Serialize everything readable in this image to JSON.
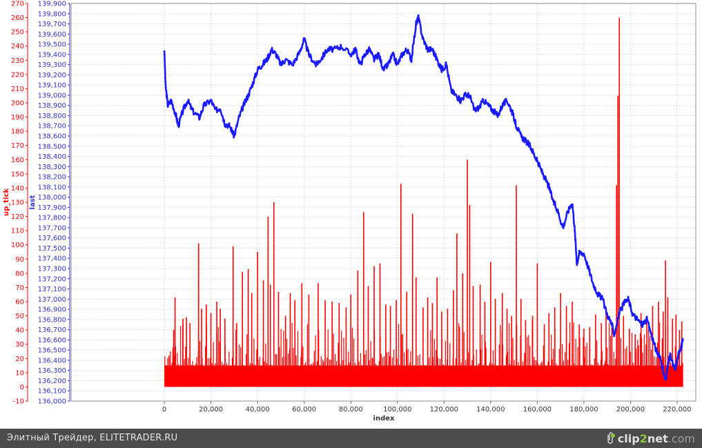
{
  "chart_data": {
    "type": "line",
    "xlabel": "index",
    "xlim": [
      -40000,
      228000
    ],
    "x_ticks": [
      0,
      20000,
      40000,
      60000,
      80000,
      100000,
      120000,
      140000,
      160000,
      180000,
      200000,
      220000
    ],
    "x_tick_labels": [
      "0",
      "20,000",
      "40,000",
      "60,000",
      "80,000",
      "100,000",
      "120,000",
      "140,000",
      "160,000",
      "180,000",
      "200,000",
      "220,000"
    ],
    "grid": true,
    "series": [
      {
        "name": "last",
        "axis": "right-inner",
        "ylabel": "last",
        "color": "#1a1aff",
        "style": "line",
        "ylim": [
          136000,
          139900
        ],
        "y_ticks_labels": [
          "136,000",
          "136,100",
          "136,200",
          "136,300",
          "136,400",
          "136,500",
          "136,600",
          "136,700",
          "136,800",
          "136,900",
          "137,000",
          "137,100",
          "137,200",
          "137,300",
          "137,400",
          "137,500",
          "137,600",
          "137,700",
          "137,800",
          "137,900",
          "138,000",
          "138,100",
          "138,200",
          "138,300",
          "138,400",
          "138,500",
          "138,600",
          "138,700",
          "138,800",
          "138,900",
          "139,000",
          "139,100",
          "139,200",
          "139,300",
          "139,400",
          "139,500",
          "139,600",
          "139,700",
          "139,800",
          "139,900"
        ],
        "points": [
          [
            0,
            139450
          ],
          [
            500,
            139100
          ],
          [
            1500,
            138900
          ],
          [
            3000,
            138950
          ],
          [
            5000,
            138800
          ],
          [
            6000,
            138700
          ],
          [
            8000,
            138850
          ],
          [
            10000,
            138950
          ],
          [
            12000,
            138850
          ],
          [
            15000,
            138780
          ],
          [
            17000,
            138900
          ],
          [
            20000,
            138950
          ],
          [
            22000,
            138850
          ],
          [
            24000,
            138880
          ],
          [
            26000,
            138720
          ],
          [
            28000,
            138700
          ],
          [
            30000,
            138600
          ],
          [
            32000,
            138780
          ],
          [
            34000,
            138900
          ],
          [
            36000,
            139000
          ],
          [
            38000,
            139120
          ],
          [
            40000,
            139250
          ],
          [
            42000,
            139300
          ],
          [
            44000,
            139350
          ],
          [
            46000,
            139450
          ],
          [
            48000,
            139400
          ],
          [
            50000,
            139300
          ],
          [
            52000,
            139350
          ],
          [
            55000,
            139300
          ],
          [
            58000,
            139420
          ],
          [
            60000,
            139550
          ],
          [
            62000,
            139400
          ],
          [
            65000,
            139300
          ],
          [
            67000,
            139350
          ],
          [
            70000,
            139450
          ],
          [
            73000,
            139450
          ],
          [
            76000,
            139480
          ],
          [
            80000,
            139400
          ],
          [
            82000,
            139450
          ],
          [
            84000,
            139300
          ],
          [
            86000,
            139400
          ],
          [
            88000,
            139450
          ],
          [
            90000,
            139350
          ],
          [
            92000,
            139400
          ],
          [
            94000,
            139250
          ],
          [
            96000,
            139300
          ],
          [
            98000,
            139400
          ],
          [
            100000,
            139300
          ],
          [
            102000,
            139400
          ],
          [
            104000,
            139450
          ],
          [
            106000,
            139350
          ],
          [
            108000,
            139700
          ],
          [
            109000,
            139760
          ],
          [
            111000,
            139550
          ],
          [
            113000,
            139450
          ],
          [
            115000,
            139450
          ],
          [
            117000,
            139350
          ],
          [
            119000,
            139250
          ],
          [
            121000,
            139300
          ],
          [
            123000,
            139050
          ],
          [
            125000,
            139000
          ],
          [
            127000,
            138950
          ],
          [
            129000,
            139000
          ],
          [
            131000,
            139000
          ],
          [
            133000,
            138850
          ],
          [
            135000,
            138880
          ],
          [
            137000,
            138950
          ],
          [
            139000,
            138900
          ],
          [
            141000,
            138850
          ],
          [
            143000,
            138800
          ],
          [
            145000,
            138900
          ],
          [
            147000,
            138950
          ],
          [
            149000,
            138850
          ],
          [
            151000,
            138700
          ],
          [
            153000,
            138600
          ],
          [
            155000,
            138550
          ],
          [
            157000,
            138500
          ],
          [
            159000,
            138400
          ],
          [
            161000,
            138300
          ],
          [
            163000,
            138200
          ],
          [
            165000,
            138100
          ],
          [
            167000,
            137950
          ],
          [
            169000,
            137850
          ],
          [
            171000,
            137700
          ],
          [
            173000,
            137850
          ],
          [
            175000,
            137950
          ],
          [
            176000,
            137700
          ],
          [
            177000,
            137350
          ],
          [
            178000,
            137450
          ],
          [
            180000,
            137450
          ],
          [
            182000,
            137300
          ],
          [
            184000,
            137150
          ],
          [
            186000,
            137050
          ],
          [
            188000,
            137000
          ],
          [
            190000,
            136850
          ],
          [
            192000,
            136750
          ],
          [
            193000,
            136650
          ],
          [
            195000,
            136850
          ],
          [
            197000,
            136950
          ],
          [
            199000,
            137000
          ],
          [
            201000,
            136850
          ],
          [
            203000,
            136800
          ],
          [
            205000,
            136750
          ],
          [
            207000,
            136800
          ],
          [
            209000,
            136650
          ],
          [
            211000,
            136500
          ],
          [
            213000,
            136400
          ],
          [
            214000,
            136300
          ],
          [
            215000,
            136200
          ],
          [
            216000,
            136350
          ],
          [
            217000,
            136450
          ],
          [
            219000,
            136300
          ],
          [
            220000,
            136400
          ],
          [
            221000,
            136500
          ],
          [
            222000,
            136550
          ],
          [
            222500,
            136600
          ]
        ]
      },
      {
        "name": "up_tick",
        "axis": "left-outer",
        "ylabel": "up_tick",
        "color": "#ff0000",
        "style": "spikes",
        "ylim": [
          -10,
          270
        ],
        "y_ticks_labels": [
          "-10",
          "0",
          "10",
          "20",
          "30",
          "40",
          "50",
          "60",
          "70",
          "80",
          "90",
          "100",
          "110",
          "120",
          "130",
          "140",
          "150",
          "160",
          "170",
          "180",
          "190",
          "200",
          "210",
          "220",
          "230",
          "240",
          "250",
          "260",
          "270"
        ],
        "baseline_band": 15,
        "spikes": [
          [
            2000,
            22
          ],
          [
            4000,
            40
          ],
          [
            4600,
            63
          ],
          [
            8000,
            48
          ],
          [
            9500,
            49
          ],
          [
            11000,
            45
          ],
          [
            14700,
            101
          ],
          [
            16000,
            55
          ],
          [
            18000,
            58
          ],
          [
            20000,
            52
          ],
          [
            22500,
            60
          ],
          [
            24000,
            55
          ],
          [
            26000,
            48
          ],
          [
            29500,
            99
          ],
          [
            31000,
            45
          ],
          [
            33500,
            81
          ],
          [
            36000,
            83
          ],
          [
            37500,
            66
          ],
          [
            40000,
            95
          ],
          [
            42500,
            75
          ],
          [
            44500,
            120
          ],
          [
            45500,
            72
          ],
          [
            47000,
            130
          ],
          [
            49000,
            67
          ],
          [
            52000,
            50
          ],
          [
            54000,
            66
          ],
          [
            56000,
            61
          ],
          [
            59000,
            73
          ],
          [
            62000,
            65
          ],
          [
            66000,
            73
          ],
          [
            69000,
            61
          ],
          [
            72000,
            60
          ],
          [
            75000,
            59
          ],
          [
            78000,
            56
          ],
          [
            80000,
            65
          ],
          [
            83000,
            82
          ],
          [
            85500,
            123
          ],
          [
            87500,
            71
          ],
          [
            90000,
            85
          ],
          [
            92500,
            87
          ],
          [
            95000,
            58
          ],
          [
            97000,
            57
          ],
          [
            99500,
            61
          ],
          [
            101500,
            143
          ],
          [
            104000,
            67
          ],
          [
            106500,
            122
          ],
          [
            108000,
            77
          ],
          [
            111000,
            56
          ],
          [
            113000,
            63
          ],
          [
            115000,
            59
          ],
          [
            117000,
            77
          ],
          [
            119000,
            53
          ],
          [
            121500,
            55
          ],
          [
            124000,
            68
          ],
          [
            125500,
            108
          ],
          [
            128000,
            80
          ],
          [
            130000,
            160
          ],
          [
            131000,
            128
          ],
          [
            132500,
            71
          ],
          [
            135500,
            72
          ],
          [
            137500,
            60
          ],
          [
            140000,
            88
          ],
          [
            142000,
            62
          ],
          [
            145000,
            66
          ],
          [
            147000,
            55
          ],
          [
            149000,
            50
          ],
          [
            151000,
            142
          ],
          [
            153000,
            62
          ],
          [
            155000,
            47
          ],
          [
            158000,
            50
          ],
          [
            160000,
            87
          ],
          [
            163000,
            44
          ],
          [
            165000,
            52
          ],
          [
            167500,
            56
          ],
          [
            170000,
            66
          ],
          [
            172500,
            57
          ],
          [
            175000,
            60
          ],
          [
            178000,
            44
          ],
          [
            180000,
            41
          ],
          [
            182500,
            42
          ],
          [
            185000,
            51
          ],
          [
            187500,
            45
          ],
          [
            189500,
            54
          ],
          [
            192000,
            42
          ],
          [
            194000,
            142
          ],
          [
            194600,
            205
          ],
          [
            195200,
            260
          ],
          [
            197000,
            50
          ],
          [
            199500,
            41
          ],
          [
            202000,
            37
          ],
          [
            204500,
            52
          ],
          [
            207000,
            45
          ],
          [
            209500,
            57
          ],
          [
            212000,
            60
          ],
          [
            214000,
            53
          ],
          [
            215000,
            89
          ],
          [
            216000,
            63
          ],
          [
            218000,
            48
          ],
          [
            219500,
            51
          ],
          [
            221000,
            40
          ],
          [
            222000,
            46
          ]
        ]
      }
    ]
  },
  "footer": {
    "caption": "Элитный Трейдер, ELITETRADER.RU",
    "logo_prefix": "clip",
    "logo_accent": "2",
    "logo_suffix": "net",
    "logo_tld": ".com"
  },
  "colors": {
    "blue_axis": "#3333cc",
    "red_axis": "#ff0000",
    "grid": "#d8d8d8",
    "footer_bg": "#4b4b4b",
    "logo_accent": "#8cc63f"
  }
}
